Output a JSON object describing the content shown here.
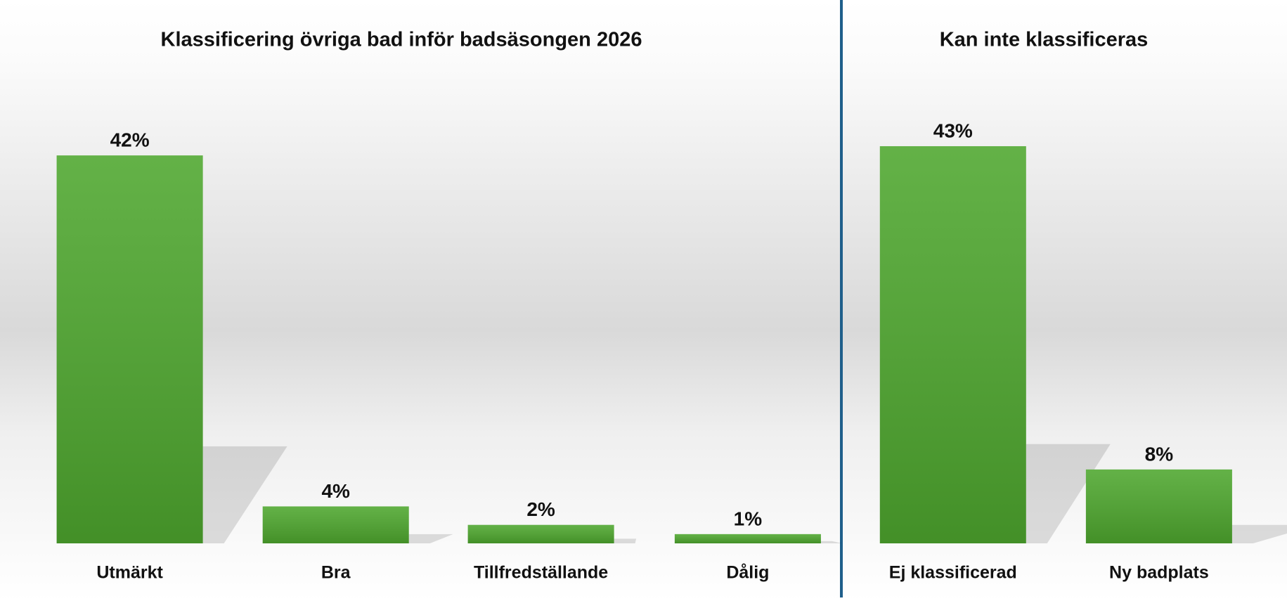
{
  "chart_data": [
    {
      "type": "bar",
      "title": "Klassificering övriga bad inför badsäsongen 2026",
      "categories": [
        "Utmärkt",
        "Bra",
        "Tillfredställande",
        "Dålig"
      ],
      "values": [
        42,
        4,
        2,
        1
      ],
      "value_labels": [
        "42%",
        "4%",
        "2%",
        "1%"
      ],
      "color": "#4ea72e"
    },
    {
      "type": "bar",
      "title": "Kan inte klassificeras",
      "categories": [
        "Ej klassificerad",
        "Ny badplats"
      ],
      "values": [
        43,
        8
      ],
      "value_labels": [
        "43%",
        "8%"
      ],
      "color": "#4ea72e"
    }
  ]
}
